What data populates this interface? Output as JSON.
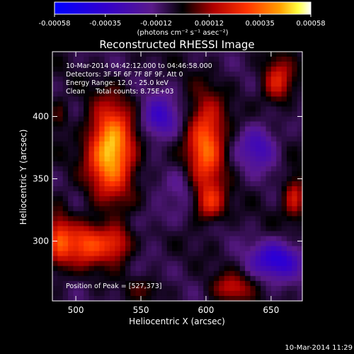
{
  "colorbar": {
    "tick_labels": [
      "-0.00058",
      "-0.00035",
      "-0.00012",
      "0.00012",
      "0.00035",
      "0.00058"
    ],
    "tick_values": [
      -0.00058,
      -0.00035,
      -0.00012,
      0.00012,
      0.00035,
      0.00058
    ],
    "range": [
      -0.00058,
      0.00058
    ],
    "unit_label": "(photons cm⁻² s⁻¹ asec⁻²)"
  },
  "chart_data": {
    "type": "heatmap",
    "title": "Reconstructed RHESSI Image",
    "xlabel": "Heliocentric X (arcsec)",
    "ylabel": "Heliocentric Y (arcsec)",
    "xlim": [
      482,
      674
    ],
    "ylim": [
      252,
      452
    ],
    "x_ticks": [
      500,
      550,
      600,
      650
    ],
    "y_ticks": [
      300,
      350,
      400
    ],
    "x_tick_labels": [
      "500",
      "550",
      "600",
      "650"
    ],
    "y_tick_labels": [
      "300",
      "350",
      "400"
    ],
    "colormap": "rainbow-black-to-white",
    "sources": [
      {
        "x": 527,
        "y": 373,
        "amp": 1.0,
        "sx": 12,
        "sy": 24
      },
      {
        "x": 600,
        "y": 378,
        "amp": 0.75,
        "sx": 10,
        "sy": 24
      },
      {
        "x": 603,
        "y": 330,
        "amp": 0.45,
        "sx": 8,
        "sy": 10
      },
      {
        "x": 508,
        "y": 298,
        "amp": 0.62,
        "sx": 14,
        "sy": 12
      },
      {
        "x": 532,
        "y": 298,
        "amp": 0.4,
        "sx": 8,
        "sy": 10
      },
      {
        "x": 655,
        "y": 428,
        "amp": 0.5,
        "sx": 8,
        "sy": 12
      },
      {
        "x": 668,
        "y": 335,
        "amp": 0.45,
        "sx": 6,
        "sy": 12
      },
      {
        "x": 620,
        "y": 262,
        "amp": 0.38,
        "sx": 10,
        "sy": 8
      },
      {
        "x": 487,
        "y": 302,
        "amp": 0.4,
        "sx": 6,
        "sy": 18
      },
      {
        "x": 487,
        "y": 400,
        "amp": 0.2,
        "sx": 5,
        "sy": 10
      },
      {
        "x": 555,
        "y": 262,
        "amp": 0.15,
        "sx": 10,
        "sy": 6
      }
    ],
    "negative_regions": [
      {
        "x": 564,
        "y": 398,
        "amp": -0.45,
        "sx": 10,
        "sy": 12
      },
      {
        "x": 640,
        "y": 376,
        "amp": -0.4,
        "sx": 10,
        "sy": 12
      },
      {
        "x": 655,
        "y": 285,
        "amp": -0.55,
        "sx": 14,
        "sy": 10
      },
      {
        "x": 582,
        "y": 345,
        "amp": -0.15,
        "sx": 8,
        "sy": 14
      },
      {
        "x": 560,
        "y": 318,
        "amp": -0.12,
        "sx": 12,
        "sy": 8
      }
    ],
    "annotations": {
      "time_range": "10-Mar-2014 04:42:12.000 to 04:46:58.000",
      "detectors": "Detectors: 3F 5F 6F 7F 8F 9F, Att 0",
      "energy": "Energy Range: 12.0 - 25.0 keV",
      "clean": "Clean     Total counts: 8.75E+03",
      "peak": "Position of Peak = [527,373]"
    }
  },
  "footer": {
    "timestamp": "10-Mar-2014 11:29"
  }
}
